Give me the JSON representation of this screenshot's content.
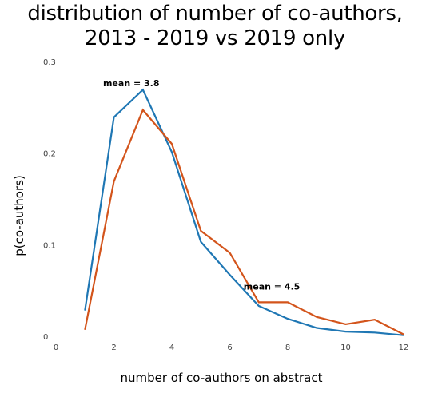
{
  "chart_data": {
    "type": "line",
    "title_lines": [
      "distribution of number of co-authors,",
      "2013 - 2019 vs 2019 only"
    ],
    "xlabel": "number of co-authors on abstract",
    "ylabel": "p(co-authors)",
    "xlim": [
      0,
      12
    ],
    "ylim": [
      0,
      0.3
    ],
    "xticks": [
      "0",
      "2",
      "4",
      "6",
      "8",
      "10",
      "12"
    ],
    "yticks": [
      "0",
      "0.1",
      "0.2",
      "0.3"
    ],
    "grid": false,
    "legend": "none",
    "series": [
      {
        "color": "#1f77b4",
        "x": [
          1,
          2,
          3,
          4,
          5,
          6,
          7,
          8,
          9,
          10,
          11,
          12
        ],
        "y": [
          0.029,
          0.24,
          0.27,
          0.202,
          0.104,
          0.068,
          0.034,
          0.02,
          0.01,
          0.006,
          0.005,
          0.002
        ]
      },
      {
        "color": "#d3541b",
        "x": [
          1,
          2,
          3,
          4,
          5,
          6,
          7,
          8,
          9,
          10,
          11,
          12
        ],
        "y": [
          0.008,
          0.17,
          0.248,
          0.211,
          0.116,
          0.092,
          0.038,
          0.038,
          0.022,
          0.014,
          0.019,
          0.003
        ]
      }
    ],
    "annotations": [
      {
        "text": "mean = 3.8",
        "x": 2.6,
        "y": 0.274
      },
      {
        "text": "mean = 4.5",
        "x": 7.45,
        "y": 0.052
      }
    ]
  }
}
